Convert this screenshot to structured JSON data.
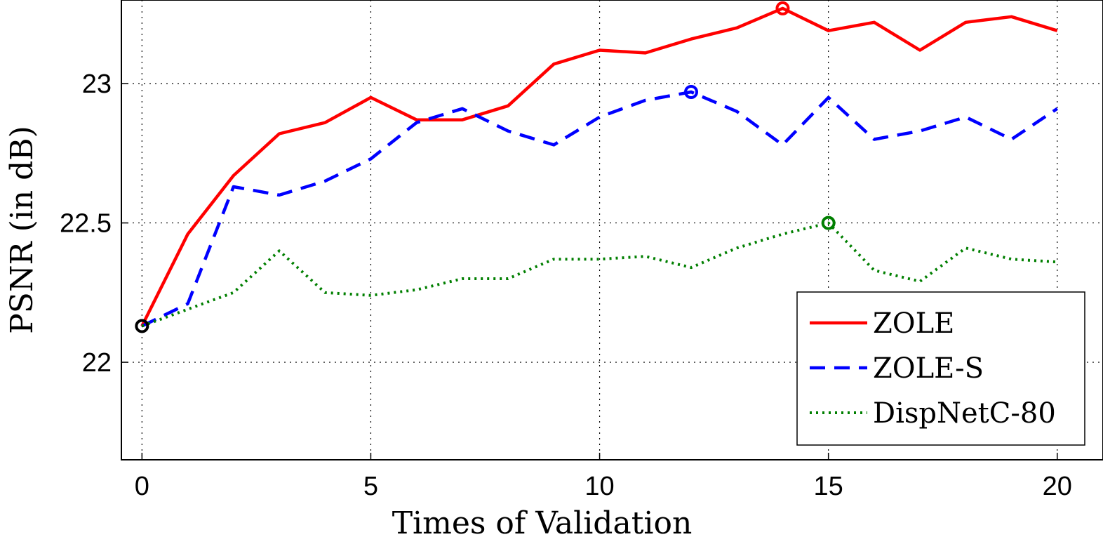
{
  "chart_data": {
    "type": "line",
    "title": "",
    "xlabel": "Times of Validation",
    "ylabel": "PSNR (in dB)",
    "xlim": [
      -0.45,
      21.0
    ],
    "ylim": [
      21.65,
      23.3
    ],
    "grid": true,
    "legend_position": "bottom-right",
    "x_ticks": [
      0,
      5,
      10,
      15,
      20
    ],
    "x_tick_labels": [
      "0",
      "5",
      "10",
      "15",
      "20"
    ],
    "y_ticks": [
      22,
      22.5,
      23
    ],
    "y_tick_labels": [
      "22",
      "22.5",
      "23"
    ],
    "x": [
      0,
      1,
      2,
      3,
      4,
      5,
      6,
      7,
      8,
      9,
      10,
      11,
      12,
      13,
      14,
      15,
      16,
      17,
      18,
      19,
      20
    ],
    "series": [
      {
        "name": "ZOLE",
        "color": "#ff0000",
        "style": "solid",
        "values": [
          22.13,
          22.46,
          22.67,
          22.82,
          22.86,
          22.95,
          22.87,
          22.87,
          22.92,
          23.07,
          23.12,
          23.11,
          23.16,
          23.2,
          23.27,
          23.19,
          23.22,
          23.12,
          23.22,
          23.24,
          23.19
        ],
        "marker": {
          "x": 14,
          "y": 23.27
        }
      },
      {
        "name": "ZOLE-S",
        "color": "#0000ff",
        "style": "dashed",
        "values": [
          22.13,
          22.21,
          22.63,
          22.6,
          22.65,
          22.73,
          22.86,
          22.91,
          22.83,
          22.78,
          22.88,
          22.94,
          22.97,
          22.9,
          22.78,
          22.95,
          22.8,
          22.83,
          22.88,
          22.8,
          22.91
        ],
        "marker": {
          "x": 12,
          "y": 22.97
        }
      },
      {
        "name": "DispNetC-80",
        "color": "#007f00",
        "style": "dotted",
        "values": [
          22.13,
          22.19,
          22.25,
          22.4,
          22.25,
          22.24,
          22.26,
          22.3,
          22.3,
          22.37,
          22.37,
          22.38,
          22.34,
          22.41,
          22.46,
          22.5,
          22.33,
          22.29,
          22.41,
          22.37,
          22.36
        ],
        "marker": {
          "x": 15,
          "y": 22.5
        }
      }
    ],
    "start_marker": {
      "x": 0,
      "y": 22.13,
      "color": "#000000"
    }
  }
}
